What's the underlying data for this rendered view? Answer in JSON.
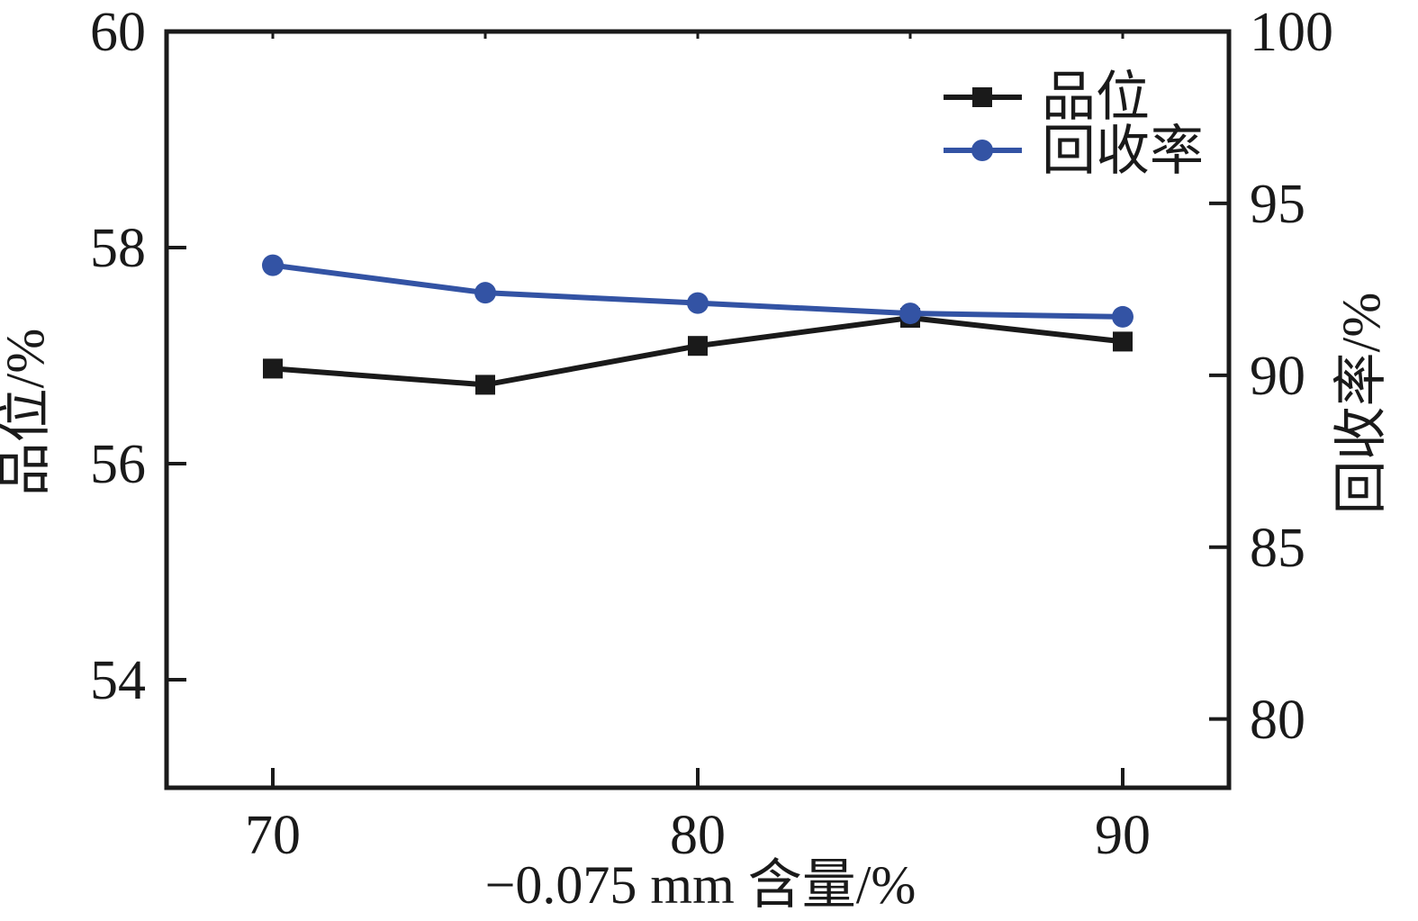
{
  "chart_data": {
    "type": "line",
    "x": [
      70,
      75,
      80,
      85,
      90
    ],
    "xlim": [
      67.5,
      92.5
    ],
    "xlabel": "−0.075 mm 含量/%",
    "x_tick_values": [
      70,
      80,
      90
    ],
    "x_tick_labels": [
      "70",
      "80",
      "90"
    ],
    "left_axis": {
      "label": "品位/%",
      "lim": [
        53,
        60
      ],
      "ticks": [
        54,
        56,
        58,
        60
      ],
      "tick_labels": [
        "54",
        "56",
        "58",
        "60"
      ]
    },
    "right_axis": {
      "label": "回收率/%",
      "lim": [
        78,
        100
      ],
      "ticks": [
        80,
        85,
        90,
        95,
        100
      ],
      "tick_labels": [
        "80",
        "85",
        "90",
        "95",
        "100"
      ]
    },
    "series": [
      {
        "key": "grade",
        "name": "品位",
        "axis": "left",
        "marker": "square",
        "color": "#1a1a1a",
        "values": [
          56.88,
          56.73,
          57.09,
          57.35,
          57.13
        ]
      },
      {
        "key": "recovery",
        "name": "回收率",
        "axis": "right",
        "marker": "circle",
        "color": "#3353a4",
        "values": [
          93.2,
          92.4,
          92.1,
          91.8,
          91.7
        ]
      }
    ],
    "legend": {
      "position": "top-right-inside",
      "entries": [
        "品位",
        "回收率"
      ]
    },
    "grid": "off"
  }
}
